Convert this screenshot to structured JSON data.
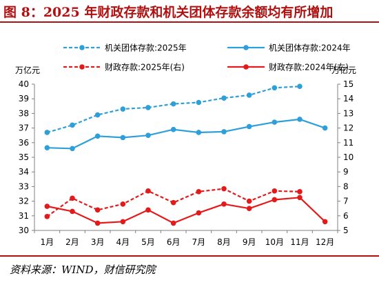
{
  "header": {
    "title": "图 8：2025 年财政存款和机关团体存款余额均有所增加"
  },
  "footer": {
    "source": "资料来源：WIND，财信研究院"
  },
  "chart_data": {
    "type": "line",
    "categories": [
      "1月",
      "2月",
      "3月",
      "4月",
      "5月",
      "6月",
      "7月",
      "8月",
      "9月",
      "10月",
      "11月",
      "12月"
    ],
    "left_axis": {
      "label": "万亿元",
      "ylim": [
        30,
        40
      ],
      "ticks": [
        30,
        31,
        32,
        33,
        34,
        35,
        36,
        37,
        38,
        39,
        40
      ]
    },
    "right_axis": {
      "label": "万亿元",
      "ylim": [
        5,
        15
      ],
      "ticks": [
        5,
        6,
        7,
        8,
        9,
        10,
        11,
        12,
        13,
        14,
        15
      ]
    },
    "grid": false,
    "legend_position": "top",
    "series": [
      {
        "name": "机关团体存款:2025年",
        "axis": "left",
        "color": "#2e9fd9",
        "style": "dashed",
        "values": [
          36.7,
          37.2,
          37.9,
          38.3,
          38.4,
          38.65,
          38.75,
          39.05,
          39.25,
          39.75,
          39.85,
          null
        ]
      },
      {
        "name": "机关团体存款:2024年",
        "axis": "left",
        "color": "#2e9fd9",
        "style": "solid",
        "values": [
          35.65,
          35.6,
          36.45,
          36.35,
          36.5,
          36.9,
          36.7,
          36.75,
          37.1,
          37.4,
          37.6,
          37.0
        ]
      },
      {
        "name": "财政存款:2025年(右)",
        "axis": "right",
        "color": "#e41a1a",
        "style": "dashed",
        "values": [
          5.95,
          7.2,
          6.4,
          6.8,
          7.7,
          6.9,
          7.65,
          7.85,
          7.0,
          7.7,
          7.65,
          null
        ]
      },
      {
        "name": "财政存款:2024年(右)",
        "axis": "right",
        "color": "#e41a1a",
        "style": "solid",
        "values": [
          6.65,
          6.3,
          5.5,
          5.6,
          6.4,
          5.5,
          6.2,
          6.8,
          6.5,
          7.1,
          7.25,
          5.6
        ]
      }
    ]
  }
}
